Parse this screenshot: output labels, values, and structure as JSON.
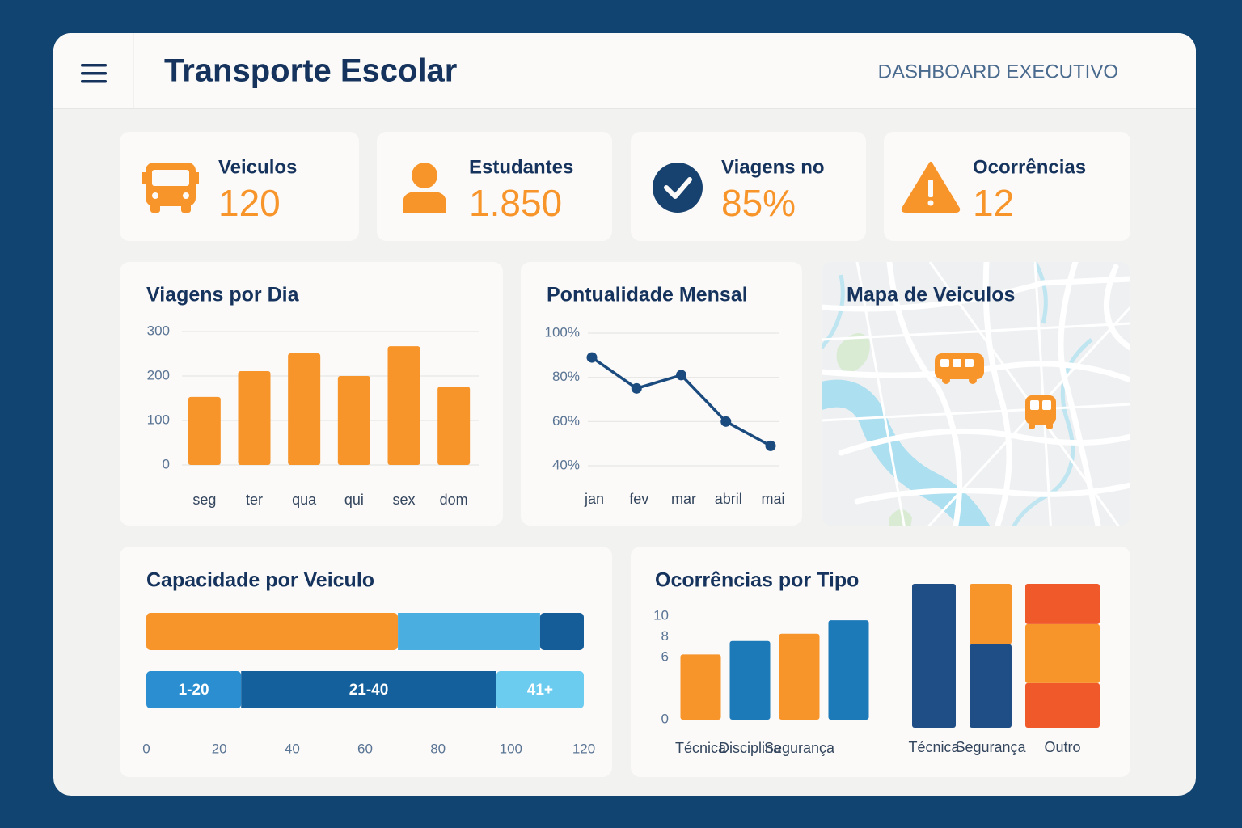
{
  "header": {
    "title": "Transporte Escolar",
    "subtitle": "DASHBOARD EXECUTIVO"
  },
  "kpis": [
    {
      "label": "Veiculos",
      "value": 120
    },
    {
      "label": "Estudantes",
      "value": 1850,
      "value_label": "1.850"
    },
    {
      "label": "Viagens no",
      "value": 85,
      "value_label": "85%"
    },
    {
      "label": "Ocorrências",
      "value": 12
    }
  ],
  "chart_data": [
    {
      "type": "bar",
      "title": "Viagens por Dia",
      "categories": [
        "seg",
        "ter",
        "qua",
        "qui",
        "sex",
        "dom"
      ],
      "values": [
        153,
        211,
        251,
        200,
        267,
        176
      ],
      "color": "#f7952b",
      "ylim": [
        0,
        300
      ],
      "yticks": [
        0,
        100,
        200,
        300
      ],
      "grid": true
    },
    {
      "type": "line",
      "title": "Pontualidade Mensal",
      "categories": [
        "jan",
        "fev",
        "mar",
        "abril",
        "mai"
      ],
      "values": [
        89,
        75,
        81,
        60,
        49
      ],
      "color": "#1b4b7e",
      "ylim": [
        40,
        100
      ],
      "yticks": [
        {
          "value": 40,
          "label": "40%"
        },
        {
          "value": 60,
          "label": "60%"
        },
        {
          "value": 80,
          "label": "80%"
        },
        {
          "value": 100,
          "label": "100%"
        }
      ],
      "grid": true
    },
    {
      "type": "map",
      "title": "Mapa de Veiculos"
    },
    {
      "type": "stacked-barh",
      "title": "Capacidade por Veiculo",
      "xlim": [
        0,
        120
      ],
      "xticks": [
        0,
        20,
        40,
        60,
        80,
        100,
        120
      ],
      "bars": [
        {
          "segments": [
            {
              "value": 69,
              "color": "#f7952b"
            },
            {
              "value": 39,
              "color": "#4aaee0"
            },
            {
              "value": 12,
              "color": "#155d99"
            }
          ]
        },
        {
          "segments": [
            {
              "label": "1-20",
              "value": 26,
              "color": "#2b8ed0"
            },
            {
              "label": "21-40",
              "value": 70,
              "color": "#13609c"
            },
            {
              "label": "41+",
              "value": 24,
              "color": "#6cccf0"
            }
          ]
        }
      ]
    },
    {
      "type": "bar",
      "title": "Ocorrências por Tipo",
      "categories": [
        "Técnica",
        "Disciplina",
        "Segurança",
        null
      ],
      "values": [
        6.3,
        7.6,
        8.3,
        9.6
      ],
      "colors": [
        "#f7952b",
        "#1d7ab8",
        "#f7952b",
        "#1d7ab8"
      ],
      "ylim": [
        0,
        10
      ],
      "yticks": [
        0,
        6,
        8,
        10
      ],
      "grid": false
    },
    {
      "type": "stacked-bar",
      "categories": [
        "Técnica",
        "Segurança",
        "Outro"
      ],
      "stacks": [
        {
          "segments": [
            {
              "value": 100,
              "color": "#1f4e86"
            }
          ]
        },
        {
          "segments": [
            {
              "value": 58,
              "color": "#1f4e86"
            },
            {
              "value": 42,
              "color": "#f7952b"
            }
          ]
        },
        {
          "segments": [
            {
              "value": 31,
              "color": "#f05a2b"
            },
            {
              "value": 41,
              "color": "#f7952b"
            },
            {
              "value": 28,
              "color": "#f05a2b"
            }
          ]
        }
      ]
    }
  ]
}
